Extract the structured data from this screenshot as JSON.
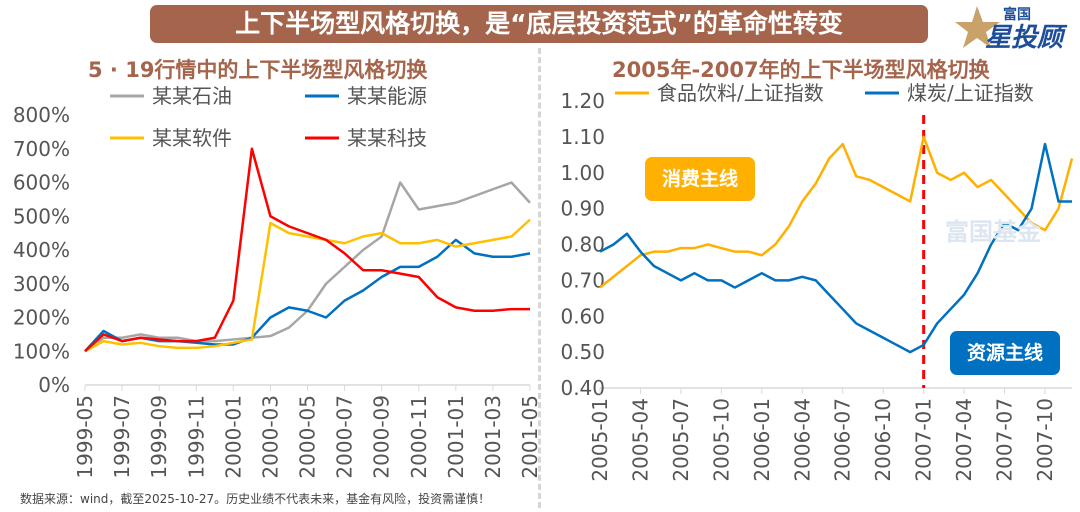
{
  "banner": "上下半场型风格切换，是“底层投资范式”的革命性转变",
  "logo": {
    "top": "富国",
    "main": "星投顾"
  },
  "watermark": "富国基金",
  "footnote": "数据来源：wind，截至2025-10-27。历史业绩不代表未来，基金有风险，投资需谨慎！",
  "chart_data": [
    {
      "type": "line",
      "title": "5 · 19行情中的上下半场型风格切换",
      "ylim": [
        0,
        800
      ],
      "yticks": [
        "0%",
        "100%",
        "200%",
        "300%",
        "400%",
        "500%",
        "600%",
        "700%",
        "800%"
      ],
      "x": [
        "1999-05",
        "1999-06",
        "1999-07",
        "1999-08",
        "1999-09",
        "1999-10",
        "1999-11",
        "1999-12",
        "2000-01",
        "2000-02",
        "2000-03",
        "2000-04",
        "2000-05",
        "2000-06",
        "2000-07",
        "2000-08",
        "2000-09",
        "2000-10",
        "2000-11",
        "2000-12",
        "2001-01",
        "2001-02",
        "2001-03",
        "2001-04",
        "2001-05"
      ],
      "xticks": [
        "1999-05",
        "1999-07",
        "1999-09",
        "1999-11",
        "2000-01",
        "2000-03",
        "2000-05",
        "2000-07",
        "2000-09",
        "2000-11",
        "2001-01",
        "2001-03",
        "2001-05"
      ],
      "legend": "top",
      "series": [
        {
          "name": "某某石油",
          "color": "#a6a6a6",
          "values": [
            100,
            140,
            140,
            150,
            140,
            140,
            130,
            130,
            135,
            140,
            145,
            170,
            220,
            300,
            350,
            400,
            440,
            600,
            520,
            530,
            540,
            560,
            580,
            600,
            540
          ]
        },
        {
          "name": "某某能源",
          "color": "#0070c0",
          "values": [
            100,
            160,
            130,
            140,
            130,
            130,
            125,
            120,
            120,
            140,
            200,
            230,
            220,
            200,
            250,
            280,
            320,
            350,
            350,
            380,
            430,
            390,
            380,
            380,
            390
          ]
        },
        {
          "name": "某某软件",
          "color": "#ffc000",
          "values": [
            100,
            130,
            120,
            125,
            115,
            110,
            110,
            115,
            125,
            135,
            480,
            450,
            440,
            430,
            420,
            440,
            450,
            420,
            420,
            430,
            410,
            420,
            430,
            440,
            490
          ]
        },
        {
          "name": "某某科技",
          "color": "#ff0000",
          "values": [
            100,
            150,
            130,
            140,
            135,
            130,
            130,
            140,
            250,
            700,
            500,
            470,
            450,
            430,
            390,
            340,
            340,
            330,
            320,
            260,
            230,
            220,
            220,
            225,
            225
          ]
        }
      ]
    },
    {
      "type": "line",
      "title": "2005年-2007年的上下半场型风格切换",
      "ylim": [
        0.4,
        1.2
      ],
      "yticks": [
        "0.40",
        "0.50",
        "0.60",
        "0.70",
        "0.80",
        "0.90",
        "1.00",
        "1.10",
        "1.20"
      ],
      "x": [
        "2005-01",
        "2005-02",
        "2005-03",
        "2005-04",
        "2005-05",
        "2005-06",
        "2005-07",
        "2005-08",
        "2005-09",
        "2005-10",
        "2005-11",
        "2005-12",
        "2006-01",
        "2006-02",
        "2006-03",
        "2006-04",
        "2006-05",
        "2006-06",
        "2006-07",
        "2006-08",
        "2006-09",
        "2006-10",
        "2006-11",
        "2006-12",
        "2007-01",
        "2007-02",
        "2007-03",
        "2007-04",
        "2007-05",
        "2007-06",
        "2007-07",
        "2007-08",
        "2007-09",
        "2007-10",
        "2007-11",
        "2007-12"
      ],
      "xticks": [
        "2005-01",
        "2005-04",
        "2005-07",
        "2005-10",
        "2006-01",
        "2006-04",
        "2006-07",
        "2006-10",
        "2007-01",
        "2007-04",
        "2007-07",
        "2007-10"
      ],
      "legend": "top",
      "marker_line": {
        "x": "2007-01",
        "color": "#ff0000",
        "style": "dashed"
      },
      "annotations": [
        {
          "text": "消费主线",
          "color": "#ffb000"
        },
        {
          "text": "资源主线",
          "color": "#0070c0"
        }
      ],
      "series": [
        {
          "name": "食品饮料/上证指数",
          "color": "#ffb000",
          "values": [
            0.68,
            0.71,
            0.74,
            0.77,
            0.78,
            0.78,
            0.79,
            0.79,
            0.8,
            0.79,
            0.78,
            0.78,
            0.77,
            0.8,
            0.85,
            0.92,
            0.97,
            1.04,
            1.08,
            0.99,
            0.98,
            0.96,
            0.94,
            0.92,
            1.1,
            1.0,
            0.98,
            1.0,
            0.96,
            0.98,
            0.94,
            0.9,
            0.86,
            0.84,
            0.9,
            1.04
          ]
        },
        {
          "name": "煤炭/上证指数",
          "color": "#0070c0",
          "values": [
            0.78,
            0.8,
            0.83,
            0.78,
            0.74,
            0.72,
            0.7,
            0.72,
            0.7,
            0.7,
            0.68,
            0.7,
            0.72,
            0.7,
            0.7,
            0.71,
            0.7,
            0.66,
            0.62,
            0.58,
            0.56,
            0.54,
            0.52,
            0.5,
            0.52,
            0.58,
            0.62,
            0.66,
            0.72,
            0.8,
            0.86,
            0.84,
            0.9,
            1.08,
            0.92,
            0.92
          ]
        }
      ]
    }
  ]
}
